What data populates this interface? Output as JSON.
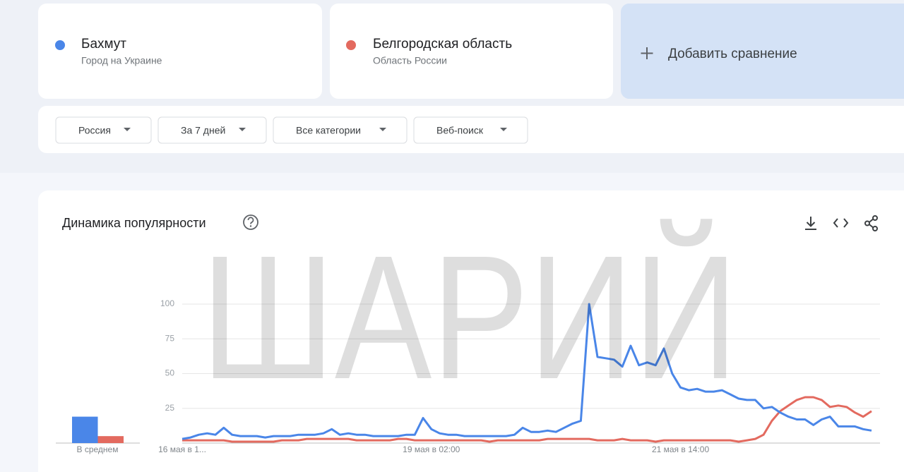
{
  "compare": {
    "terms": [
      {
        "subtitle": "Город на Украине"
      },
      {
        "subtitle": "Область России"
      }
    ],
    "add": "Добавить сравнение"
  },
  "filters": [
    "Россия",
    "За 7 дней",
    "Все категории",
    "Веб-поиск"
  ],
  "panel": {
    "title": "Динамика популярности"
  },
  "watermark": "ШАРИЙ",
  "chart_data": [
    {
      "type": "line",
      "categories": [
        "16 мая в 1...",
        null,
        null,
        null,
        null,
        null,
        null,
        null,
        null,
        null,
        null,
        null,
        null,
        null,
        null,
        null,
        null,
        null,
        null,
        null,
        null,
        null,
        null,
        null,
        null,
        null,
        null,
        null,
        null,
        null,
        "19 мая в 02:00",
        null,
        null,
        null,
        null,
        null,
        null,
        null,
        null,
        null,
        null,
        null,
        null,
        null,
        null,
        null,
        null,
        null,
        null,
        null,
        null,
        null,
        null,
        null,
        null,
        null,
        null,
        null,
        null,
        null,
        "21 мая в 14:00",
        null,
        null,
        null,
        null,
        null,
        null,
        null,
        null,
        null,
        null,
        null,
        null,
        null,
        null,
        null,
        null,
        null,
        null,
        null,
        null,
        null,
        null,
        null
      ],
      "series": [
        {
          "name": "Бахмут",
          "color": "#4a86e8",
          "values": [
            3,
            4,
            6,
            7,
            6,
            11,
            6,
            5,
            5,
            5,
            4,
            5,
            5,
            5,
            6,
            6,
            6,
            7,
            10,
            6,
            7,
            6,
            6,
            5,
            5,
            5,
            5,
            6,
            6,
            18,
            10,
            7,
            6,
            6,
            5,
            5,
            5,
            5,
            5,
            5,
            6,
            11,
            8,
            8,
            9,
            8,
            11,
            14,
            16,
            100,
            62,
            61,
            60,
            55,
            70,
            56,
            58,
            56,
            68,
            50,
            40,
            38,
            39,
            37,
            37,
            38,
            35,
            32,
            31,
            31,
            25,
            26,
            22,
            19,
            17,
            17,
            13,
            17,
            19,
            12,
            12,
            12,
            10,
            9
          ]
        },
        {
          "name": "Белгородская область",
          "color": "#e36a5f",
          "values": [
            2,
            2,
            2,
            2,
            2,
            2,
            1,
            1,
            1,
            1,
            1,
            1,
            2,
            2,
            2,
            3,
            3,
            3,
            3,
            3,
            3,
            2,
            2,
            2,
            2,
            2,
            3,
            3,
            2,
            2,
            2,
            2,
            2,
            2,
            2,
            2,
            2,
            1,
            2,
            2,
            2,
            2,
            2,
            2,
            3,
            3,
            3,
            3,
            3,
            3,
            2,
            2,
            2,
            3,
            2,
            2,
            2,
            1,
            2,
            2,
            2,
            2,
            2,
            2,
            2,
            2,
            2,
            1,
            2,
            3,
            6,
            16,
            23,
            27,
            31,
            33,
            33,
            31,
            26,
            27,
            26,
            22,
            19,
            23
          ]
        }
      ],
      "ylim": [
        0,
        100
      ],
      "yticks": [
        25,
        50,
        75,
        100
      ],
      "grid": true
    },
    {
      "type": "bar",
      "categories": [
        "В среднем"
      ],
      "series": [
        {
          "color": "#4a86e8",
          "values": [
            19
          ]
        },
        {
          "color": "#e36a5f",
          "values": [
            5
          ]
        }
      ],
      "ylim": [
        0,
        100
      ]
    }
  ]
}
